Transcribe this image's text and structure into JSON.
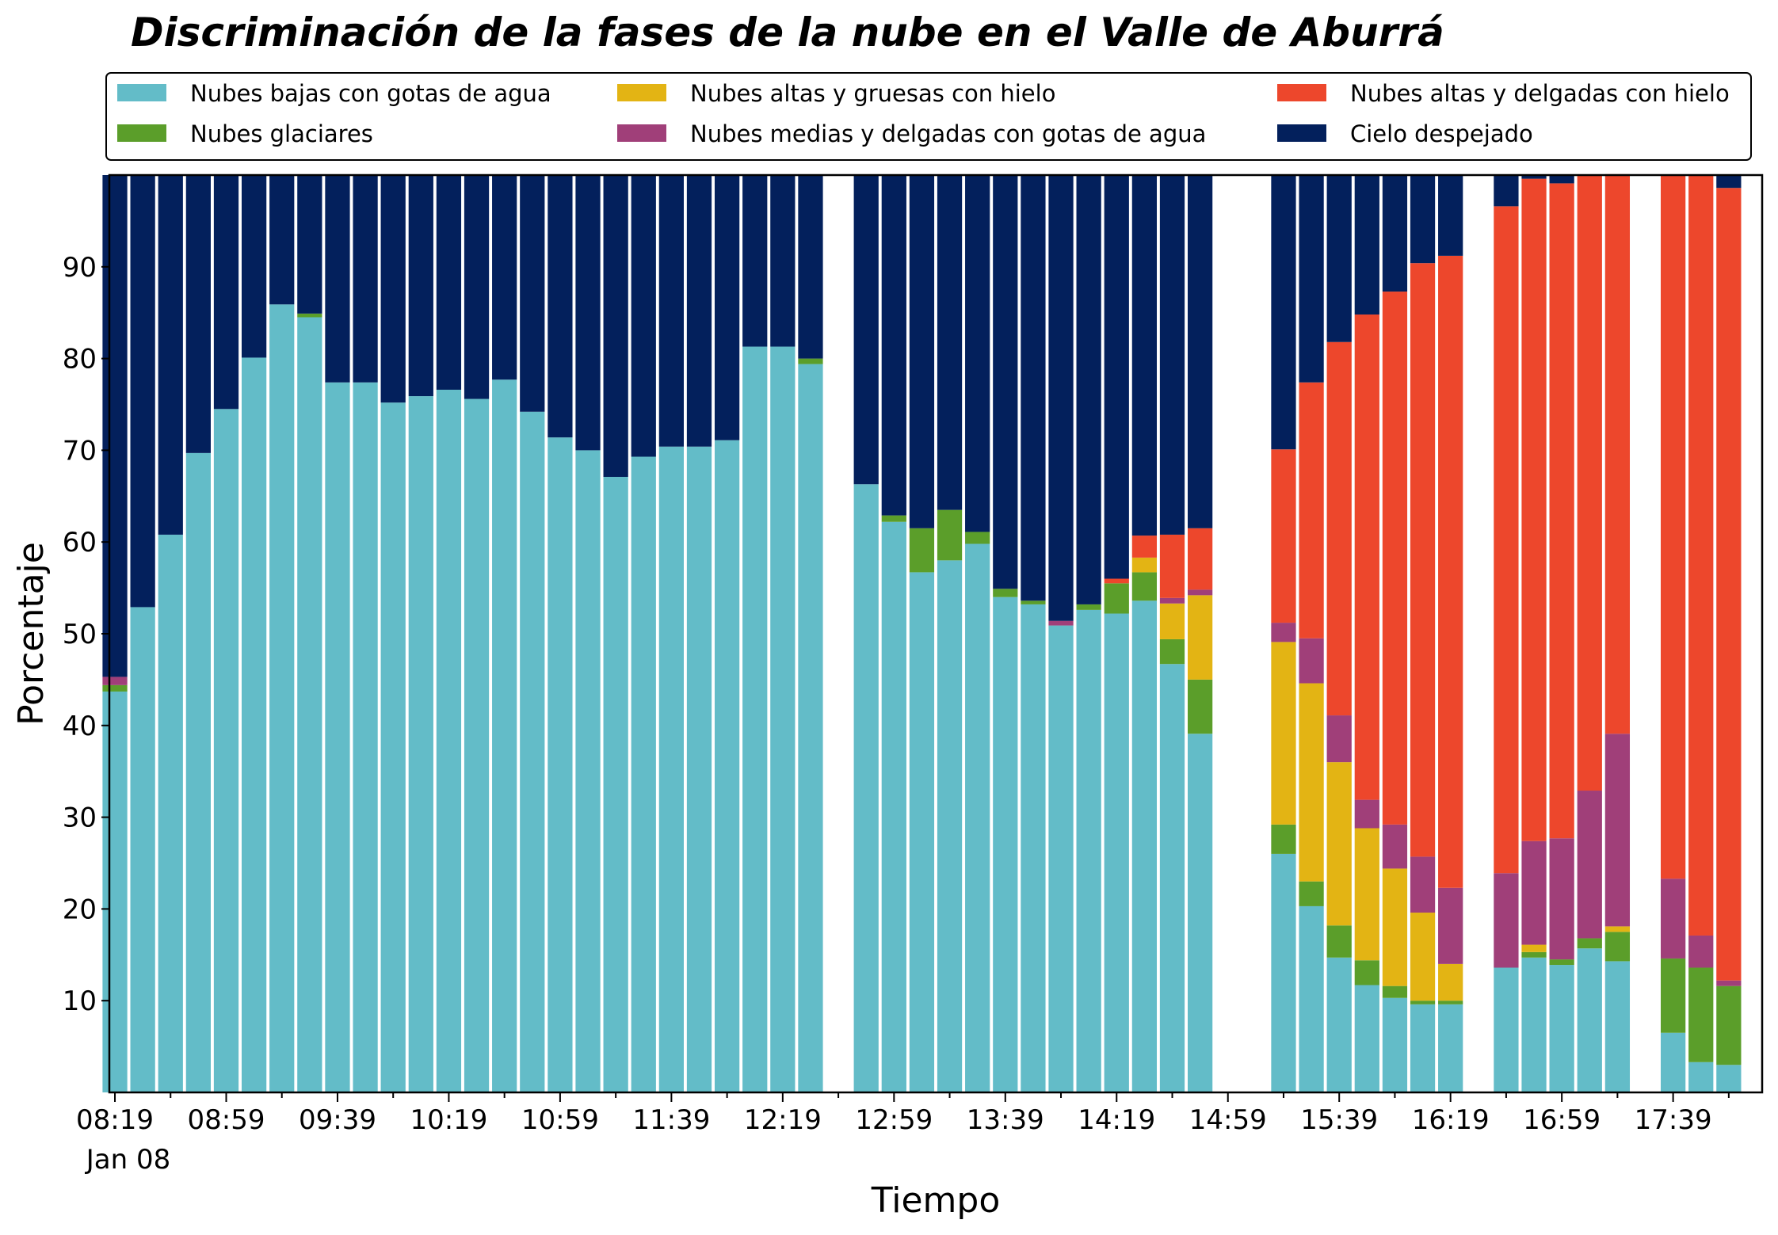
{
  "chart_data": {
    "type": "bar",
    "stacked": true,
    "title": "Discriminación de la fases de la nube en el Valle de Aburrá",
    "xlabel": "Tiempo",
    "ylabel": "Porcentaje",
    "ylim": [
      0,
      100
    ],
    "y_ticks": [
      "10",
      "20",
      "30",
      "40",
      "50",
      "60",
      "70",
      "80",
      "90"
    ],
    "x_ticks": [
      "08:19",
      "08:59",
      "09:39",
      "10:19",
      "10:59",
      "11:39",
      "12:19",
      "12:59",
      "13:39",
      "14:19",
      "14:59",
      "15:39",
      "16:19",
      "16:59",
      "17:39"
    ],
    "x_date_label": "Jan 08",
    "x_range_minutes": [
      "08:17",
      "18:11"
    ],
    "bar_interval_minutes": 10,
    "legend_placement": "top",
    "grid": false,
    "series": [
      {
        "name": "Nubes bajas con gotas de agua",
        "color": "#63bcc8"
      },
      {
        "name": "Nubes glaciares",
        "color": "#5b9e2a"
      },
      {
        "name": "Nubes altas y gruesas con hielo",
        "color": "#e3b414"
      },
      {
        "name": "Nubes medias y delgadas con gotas de agua",
        "color": "#a03f79"
      },
      {
        "name": "Nubes altas y delgadas con hielo",
        "color": "#ed472c"
      },
      {
        "name": "Cielo despejado",
        "color": "#03205c"
      }
    ],
    "bars": [
      {
        "time": "08:19",
        "values": [
          43.7,
          0.7,
          0,
          0.9,
          0,
          54.7
        ]
      },
      {
        "time": "08:29",
        "values": [
          52.9,
          0,
          0,
          0,
          0,
          47.1
        ]
      },
      {
        "time": "08:39",
        "values": [
          60.8,
          0,
          0,
          0,
          0,
          39.2
        ]
      },
      {
        "time": "08:49",
        "values": [
          69.7,
          0,
          0,
          0,
          0,
          30.3
        ]
      },
      {
        "time": "08:59",
        "values": [
          74.5,
          0,
          0,
          0,
          0,
          25.5
        ]
      },
      {
        "time": "09:09",
        "values": [
          80.1,
          0,
          0,
          0,
          0,
          19.9
        ]
      },
      {
        "time": "09:19",
        "values": [
          85.9,
          0,
          0,
          0,
          0,
          14.1
        ]
      },
      {
        "time": "09:29",
        "values": [
          84.5,
          0.4,
          0,
          0,
          0,
          15.1
        ]
      },
      {
        "time": "09:39",
        "values": [
          77.4,
          0,
          0,
          0,
          0,
          22.6
        ]
      },
      {
        "time": "09:49",
        "values": [
          77.4,
          0,
          0,
          0,
          0,
          22.6
        ]
      },
      {
        "time": "09:59",
        "values": [
          75.2,
          0,
          0,
          0,
          0,
          24.8
        ]
      },
      {
        "time": "10:09",
        "values": [
          75.9,
          0,
          0,
          0,
          0,
          24.1
        ]
      },
      {
        "time": "10:19",
        "values": [
          76.6,
          0,
          0,
          0,
          0,
          23.4
        ]
      },
      {
        "time": "10:29",
        "values": [
          75.6,
          0,
          0,
          0,
          0,
          24.4
        ]
      },
      {
        "time": "10:39",
        "values": [
          77.7,
          0,
          0,
          0,
          0,
          22.3
        ]
      },
      {
        "time": "10:49",
        "values": [
          74.2,
          0,
          0,
          0,
          0,
          25.8
        ]
      },
      {
        "time": "10:59",
        "values": [
          71.4,
          0,
          0,
          0,
          0,
          28.6
        ]
      },
      {
        "time": "11:09",
        "values": [
          70.0,
          0,
          0,
          0,
          0,
          30.0
        ]
      },
      {
        "time": "11:19",
        "values": [
          67.1,
          0,
          0,
          0,
          0,
          32.9
        ]
      },
      {
        "time": "11:29",
        "values": [
          69.3,
          0,
          0,
          0,
          0,
          30.7
        ]
      },
      {
        "time": "11:39",
        "values": [
          70.4,
          0,
          0,
          0,
          0,
          29.6
        ]
      },
      {
        "time": "11:49",
        "values": [
          70.4,
          0,
          0,
          0,
          0,
          29.6
        ]
      },
      {
        "time": "11:59",
        "values": [
          71.1,
          0,
          0,
          0,
          0,
          28.9
        ]
      },
      {
        "time": "12:09",
        "values": [
          81.3,
          0,
          0,
          0,
          0,
          18.7
        ]
      },
      {
        "time": "12:19",
        "values": [
          81.3,
          0,
          0,
          0,
          0,
          18.7
        ]
      },
      {
        "time": "12:29",
        "values": [
          79.4,
          0.6,
          0,
          0,
          0,
          20.0
        ]
      },
      {
        "time": "12:49",
        "values": [
          66.3,
          0,
          0,
          0,
          0,
          33.7
        ]
      },
      {
        "time": "12:59",
        "values": [
          62.2,
          0.7,
          0,
          0,
          0,
          37.1
        ]
      },
      {
        "time": "13:09",
        "values": [
          56.7,
          4.8,
          0,
          0,
          0,
          38.5
        ]
      },
      {
        "time": "13:19",
        "values": [
          58.0,
          5.5,
          0,
          0,
          0,
          36.5
        ]
      },
      {
        "time": "13:29",
        "values": [
          59.8,
          1.3,
          0,
          0,
          0,
          38.9
        ]
      },
      {
        "time": "13:39",
        "values": [
          54.0,
          0.9,
          0,
          0,
          0,
          45.1
        ]
      },
      {
        "time": "13:49",
        "values": [
          53.2,
          0.4,
          0,
          0,
          0,
          46.4
        ]
      },
      {
        "time": "13:59",
        "values": [
          50.9,
          0,
          0,
          0.5,
          0,
          48.6
        ]
      },
      {
        "time": "14:09",
        "values": [
          52.6,
          0.6,
          0,
          0,
          0,
          46.8
        ]
      },
      {
        "time": "14:19",
        "values": [
          52.2,
          3.3,
          0,
          0,
          0.5,
          44.0
        ]
      },
      {
        "time": "14:29",
        "values": [
          53.6,
          3.1,
          1.6,
          0,
          2.4,
          39.3
        ]
      },
      {
        "time": "14:39",
        "values": [
          46.7,
          2.7,
          3.9,
          0.6,
          6.9,
          39.2
        ]
      },
      {
        "time": "14:49",
        "values": [
          39.1,
          5.9,
          9.2,
          0.6,
          6.7,
          38.5
        ]
      },
      {
        "time": "15:19",
        "values": [
          26.0,
          3.2,
          19.9,
          2.1,
          18.9,
          29.9
        ]
      },
      {
        "time": "15:29",
        "values": [
          20.3,
          2.7,
          21.6,
          4.9,
          27.9,
          22.6
        ]
      },
      {
        "time": "15:39",
        "values": [
          14.7,
          3.5,
          17.8,
          5.1,
          40.7,
          18.2
        ]
      },
      {
        "time": "15:49",
        "values": [
          11.7,
          2.7,
          14.4,
          3.1,
          52.9,
          15.2
        ]
      },
      {
        "time": "15:59",
        "values": [
          10.3,
          1.3,
          12.8,
          4.8,
          58.1,
          12.7
        ]
      },
      {
        "time": "16:09",
        "values": [
          9.6,
          0.4,
          9.6,
          6.1,
          64.7,
          9.6
        ]
      },
      {
        "time": "16:19",
        "values": [
          9.6,
          0.4,
          4.0,
          8.3,
          68.9,
          8.8
        ]
      },
      {
        "time": "16:39",
        "values": [
          13.6,
          0,
          0,
          10.3,
          72.7,
          3.4
        ]
      },
      {
        "time": "16:49",
        "values": [
          14.7,
          0.6,
          0.8,
          11.3,
          72.2,
          0.4
        ]
      },
      {
        "time": "16:59",
        "values": [
          13.9,
          0.6,
          0,
          13.2,
          71.4,
          0.9
        ]
      },
      {
        "time": "17:09",
        "values": [
          15.7,
          1.1,
          0,
          16.1,
          67.1,
          0
        ]
      },
      {
        "time": "17:19",
        "values": [
          14.3,
          3.2,
          0.6,
          21.0,
          61.0,
          0
        ]
      },
      {
        "time": "17:39",
        "values": [
          6.5,
          8.1,
          0,
          8.7,
          76.7,
          0
        ]
      },
      {
        "time": "17:49",
        "values": [
          3.3,
          10.3,
          0,
          3.5,
          82.9,
          0
        ]
      },
      {
        "time": "17:59",
        "values": [
          3.0,
          8.6,
          0,
          0.6,
          86.4,
          1.4
        ]
      }
    ]
  }
}
